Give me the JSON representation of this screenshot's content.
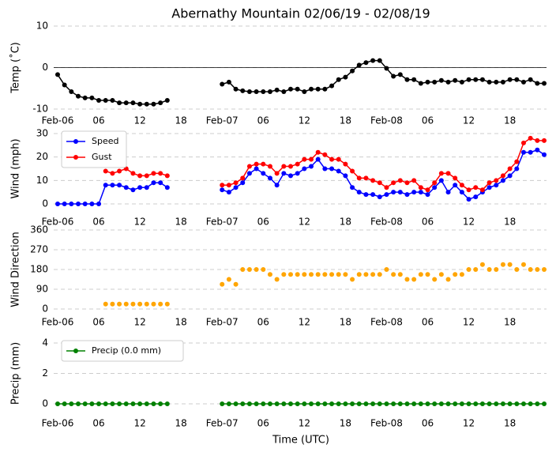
{
  "chart_data": [
    {
      "type": "line",
      "title": "Abernathy Mountain 02/06/19 - 02/08/19",
      "ylabel": "Temp (˚C)",
      "x": [
        0,
        1,
        2,
        3,
        4,
        5,
        6,
        7,
        8,
        9,
        10,
        11,
        12,
        13,
        14,
        15,
        16,
        17,
        18,
        19,
        20,
        21,
        22,
        23,
        24,
        25,
        26,
        27,
        28,
        29,
        30,
        31,
        32,
        33,
        34,
        35,
        36,
        37,
        38,
        39,
        40,
        41,
        42,
        43,
        44,
        45,
        46,
        47,
        48,
        49,
        50,
        51,
        52,
        53,
        54,
        55,
        56,
        57,
        58,
        59,
        60,
        61,
        62,
        63,
        64,
        65,
        66,
        67,
        68,
        69,
        70,
        71
      ],
      "xlim": [
        0,
        71
      ],
      "xticks": [
        {
          "value": 0,
          "label": "Feb-06"
        },
        {
          "value": 6,
          "label": "06"
        },
        {
          "value": 12,
          "label": "12"
        },
        {
          "value": 18,
          "label": "18"
        },
        {
          "value": 24,
          "label": "Feb-07"
        },
        {
          "value": 30,
          "label": "06"
        },
        {
          "value": 36,
          "label": "12"
        },
        {
          "value": 42,
          "label": "18"
        },
        {
          "value": 48,
          "label": "Feb-08"
        },
        {
          "value": 54,
          "label": "06"
        },
        {
          "value": 60,
          "label": "12"
        },
        {
          "value": 66,
          "label": "18"
        }
      ],
      "ylim": [
        -10,
        10
      ],
      "yticks": [
        -10,
        0,
        10
      ],
      "grid": true,
      "zero_line": true,
      "series": [
        {
          "color": "#000000",
          "values": [
            -1.7,
            -4.2,
            -5.8,
            -6.9,
            -7.3,
            -7.3,
            -7.9,
            -7.9,
            -7.9,
            -8.5,
            -8.5,
            -8.5,
            -8.8,
            -8.8,
            -8.8,
            -8.5,
            -7.9,
            null,
            null,
            null,
            null,
            null,
            null,
            null,
            -4,
            -3.5,
            -5.2,
            -5.6,
            -5.8,
            -5.8,
            -5.8,
            -5.8,
            -5.4,
            -5.8,
            -5.2,
            -5.2,
            -5.8,
            -5.2,
            -5.2,
            -5.2,
            -4.4,
            -2.9,
            -2.3,
            -0.8,
            0.6,
            1.2,
            1.7,
            1.7,
            -0.2,
            -2.1,
            -1.7,
            -2.9,
            -2.9,
            -3.8,
            -3.5,
            -3.5,
            -3.1,
            -3.5,
            -3.1,
            -3.5,
            -2.9,
            -2.9,
            -2.9,
            -3.5,
            -3.5,
            -3.5,
            -2.9,
            -2.9,
            -3.5,
            -2.9,
            -3.8,
            -3.8
          ]
        }
      ]
    },
    {
      "type": "line",
      "ylabel": "Wind (mph)",
      "x": [
        0,
        1,
        2,
        3,
        4,
        5,
        6,
        7,
        8,
        9,
        10,
        11,
        12,
        13,
        14,
        15,
        16,
        17,
        18,
        19,
        20,
        21,
        22,
        23,
        24,
        25,
        26,
        27,
        28,
        29,
        30,
        31,
        32,
        33,
        34,
        35,
        36,
        37,
        38,
        39,
        40,
        41,
        42,
        43,
        44,
        45,
        46,
        47,
        48,
        49,
        50,
        51,
        52,
        53,
        54,
        55,
        56,
        57,
        58,
        59,
        60,
        61,
        62,
        63,
        64,
        65,
        66,
        67,
        68,
        69,
        70,
        71
      ],
      "xlim": [
        0,
        71
      ],
      "xticks": [
        {
          "value": 0,
          "label": "Feb-06"
        },
        {
          "value": 6,
          "label": "06"
        },
        {
          "value": 12,
          "label": "12"
        },
        {
          "value": 18,
          "label": "18"
        },
        {
          "value": 24,
          "label": "Feb-07"
        },
        {
          "value": 30,
          "label": "06"
        },
        {
          "value": 36,
          "label": "12"
        },
        {
          "value": 42,
          "label": "18"
        },
        {
          "value": 48,
          "label": "Feb-08"
        },
        {
          "value": 54,
          "label": "06"
        },
        {
          "value": 60,
          "label": "12"
        },
        {
          "value": 66,
          "label": "18"
        }
      ],
      "ylim": [
        0,
        30
      ],
      "yticks": [
        0,
        10,
        20,
        30
      ],
      "grid": true,
      "legend": "upper left",
      "series": [
        {
          "name": "Speed",
          "color": "#0000ff",
          "values": [
            0,
            0,
            0,
            0,
            0,
            0,
            0,
            8,
            8,
            8,
            7,
            6,
            7,
            7,
            9,
            9,
            7,
            null,
            null,
            null,
            null,
            null,
            null,
            null,
            6,
            5,
            7,
            9,
            13,
            15,
            13,
            11,
            8,
            13,
            12,
            13,
            15,
            16,
            19,
            15,
            15,
            14,
            12,
            7,
            5,
            4,
            4,
            3,
            4,
            5,
            5,
            4,
            5,
            5,
            4,
            7,
            10,
            5,
            8,
            5,
            2,
            3,
            5,
            7,
            8,
            10,
            12,
            15,
            22,
            22,
            23,
            21
          ]
        },
        {
          "name": "Gust",
          "color": "#ff0000",
          "values": [
            null,
            null,
            null,
            null,
            null,
            null,
            null,
            14,
            13,
            14,
            15,
            13,
            12,
            12,
            13,
            13,
            12,
            null,
            null,
            null,
            null,
            null,
            null,
            null,
            8,
            8,
            9,
            11,
            16,
            17,
            17,
            16,
            13,
            16,
            16,
            17,
            19,
            19,
            22,
            21,
            19,
            19,
            17,
            14,
            11,
            11,
            10,
            9,
            7,
            9,
            10,
            9,
            10,
            7,
            6,
            9,
            13,
            13,
            11,
            8,
            6,
            7,
            6,
            9,
            10,
            12,
            15,
            18,
            26,
            28,
            27,
            27
          ]
        }
      ]
    },
    {
      "type": "scatter",
      "ylabel": "Wind Direction",
      "x": [
        0,
        1,
        2,
        3,
        4,
        5,
        6,
        7,
        8,
        9,
        10,
        11,
        12,
        13,
        14,
        15,
        16,
        17,
        18,
        19,
        20,
        21,
        22,
        23,
        24,
        25,
        26,
        27,
        28,
        29,
        30,
        31,
        32,
        33,
        34,
        35,
        36,
        37,
        38,
        39,
        40,
        41,
        42,
        43,
        44,
        45,
        46,
        47,
        48,
        49,
        50,
        51,
        52,
        53,
        54,
        55,
        56,
        57,
        58,
        59,
        60,
        61,
        62,
        63,
        64,
        65,
        66,
        67,
        68,
        69,
        70,
        71
      ],
      "xlim": [
        0,
        71
      ],
      "xticks": [
        {
          "value": 0,
          "label": "Feb-06"
        },
        {
          "value": 6,
          "label": "06"
        },
        {
          "value": 12,
          "label": "12"
        },
        {
          "value": 18,
          "label": "18"
        },
        {
          "value": 24,
          "label": "Feb-07"
        },
        {
          "value": 30,
          "label": "06"
        },
        {
          "value": 36,
          "label": "12"
        },
        {
          "value": 42,
          "label": "18"
        },
        {
          "value": 48,
          "label": "Feb-08"
        },
        {
          "value": 54,
          "label": "06"
        },
        {
          "value": 60,
          "label": "12"
        },
        {
          "value": 66,
          "label": "18"
        }
      ],
      "ylim": [
        0,
        360
      ],
      "yticks": [
        0,
        90,
        180,
        270,
        360
      ],
      "grid": true,
      "series": [
        {
          "color": "#ffa500",
          "values": [
            null,
            null,
            null,
            null,
            null,
            null,
            null,
            22.5,
            22.5,
            22.5,
            22.5,
            22.5,
            22.5,
            22.5,
            22.5,
            22.5,
            22.5,
            null,
            null,
            null,
            null,
            null,
            null,
            null,
            112.5,
            135,
            112.5,
            180,
            180,
            180,
            180,
            157.5,
            135,
            157.5,
            157.5,
            157.5,
            157.5,
            157.5,
            157.5,
            157.5,
            157.5,
            157.5,
            157.5,
            135,
            157.5,
            157.5,
            157.5,
            157.5,
            180,
            157.5,
            157.5,
            135,
            135,
            157.5,
            157.5,
            135,
            157.5,
            135,
            157.5,
            157.5,
            180,
            180,
            202.5,
            180,
            180,
            202.5,
            202.5,
            180,
            202.5,
            180,
            180,
            180
          ]
        }
      ]
    },
    {
      "type": "line",
      "ylabel": "Precip (mm)",
      "xlabel": "Time (UTC)",
      "x": [
        0,
        1,
        2,
        3,
        4,
        5,
        6,
        7,
        8,
        9,
        10,
        11,
        12,
        13,
        14,
        15,
        16,
        17,
        18,
        19,
        20,
        21,
        22,
        23,
        24,
        25,
        26,
        27,
        28,
        29,
        30,
        31,
        32,
        33,
        34,
        35,
        36,
        37,
        38,
        39,
        40,
        41,
        42,
        43,
        44,
        45,
        46,
        47,
        48,
        49,
        50,
        51,
        52,
        53,
        54,
        55,
        56,
        57,
        58,
        59,
        60,
        61,
        62,
        63,
        64,
        65,
        66,
        67,
        68,
        69,
        70,
        71
      ],
      "xlim": [
        0,
        71
      ],
      "xticks": [
        {
          "value": 0,
          "label": "Feb-06"
        },
        {
          "value": 6,
          "label": "06"
        },
        {
          "value": 12,
          "label": "12"
        },
        {
          "value": 18,
          "label": "18"
        },
        {
          "value": 24,
          "label": "Feb-07"
        },
        {
          "value": 30,
          "label": "06"
        },
        {
          "value": 36,
          "label": "12"
        },
        {
          "value": 42,
          "label": "18"
        },
        {
          "value": 48,
          "label": "Feb-08"
        },
        {
          "value": 54,
          "label": "06"
        },
        {
          "value": 60,
          "label": "12"
        },
        {
          "value": 66,
          "label": "18"
        }
      ],
      "ylim": [
        0,
        4
      ],
      "yticks": [
        0,
        2,
        4
      ],
      "grid": true,
      "legend": "upper left",
      "series": [
        {
          "name": "Precip (0.0 mm)",
          "color": "#008000",
          "values": [
            0,
            0,
            0,
            0,
            0,
            0,
            0,
            0,
            0,
            0,
            0,
            0,
            0,
            0,
            0,
            0,
            0,
            null,
            null,
            null,
            null,
            null,
            null,
            null,
            0,
            0,
            0,
            0,
            0,
            0,
            0,
            0,
            0,
            0,
            0,
            0,
            0,
            0,
            0,
            0,
            0,
            0,
            0,
            0,
            0,
            0,
            0,
            0,
            0,
            0,
            0,
            0,
            0,
            0,
            0,
            0,
            0,
            0,
            0,
            0,
            0,
            0,
            0,
            0,
            0,
            0,
            0,
            0,
            0,
            0,
            0,
            0
          ]
        }
      ]
    }
  ]
}
